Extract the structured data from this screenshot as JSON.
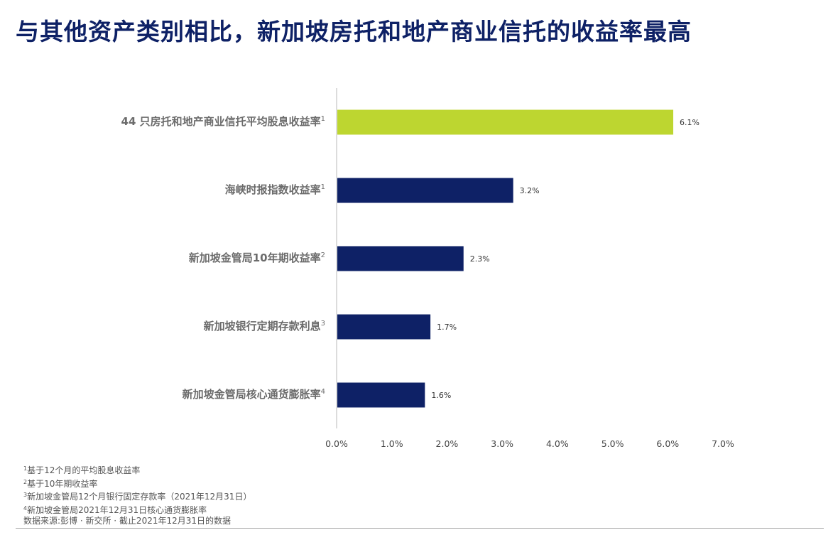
{
  "title": "与其他资产类别相比，新加坡房托和地产商业信托的收益率最高",
  "chart_data": {
    "type": "bar",
    "orientation": "horizontal",
    "categories": [
      {
        "label": "44 只房托和地产商业信托平均股息收益率",
        "note": "1"
      },
      {
        "label": "海峡时报指数收益率",
        "note": "1"
      },
      {
        "label": "新加坡金管局10年期收益率",
        "note": "2"
      },
      {
        "label": "新加坡银行定期存款利息",
        "note": "3"
      },
      {
        "label": "新加坡金管局核心通货膨胀率",
        "note": "4"
      }
    ],
    "values": [
      6.1,
      3.2,
      2.3,
      1.7,
      1.6
    ],
    "value_labels": [
      "6.1%",
      "3.2%",
      "2.3%",
      "1.7%",
      "1.6%"
    ],
    "xlim": [
      0,
      7
    ],
    "x_ticks": [
      "0.0%",
      "1.0%",
      "2.0%",
      "3.0%",
      "4.0%",
      "5.0%",
      "6.0%",
      "7.0%"
    ],
    "grid": false,
    "colors": {
      "highlight": "#bdd630",
      "default": "#0e2166"
    }
  },
  "footnotes": [
    {
      "mark": "1",
      "text": "基于12个月的平均股息收益率"
    },
    {
      "mark": "2",
      "text": "基于10年期收益率"
    },
    {
      "mark": "3",
      "text": "新加坡金管局12个月银行固定存款率（2021年12月31日）"
    },
    {
      "mark": "4",
      "text": "新加坡金管局2021年12月31日核心通货膨胀率"
    }
  ],
  "source": "数据来源:彭博 · 新交所 · 截止2021年12月31日的数据"
}
